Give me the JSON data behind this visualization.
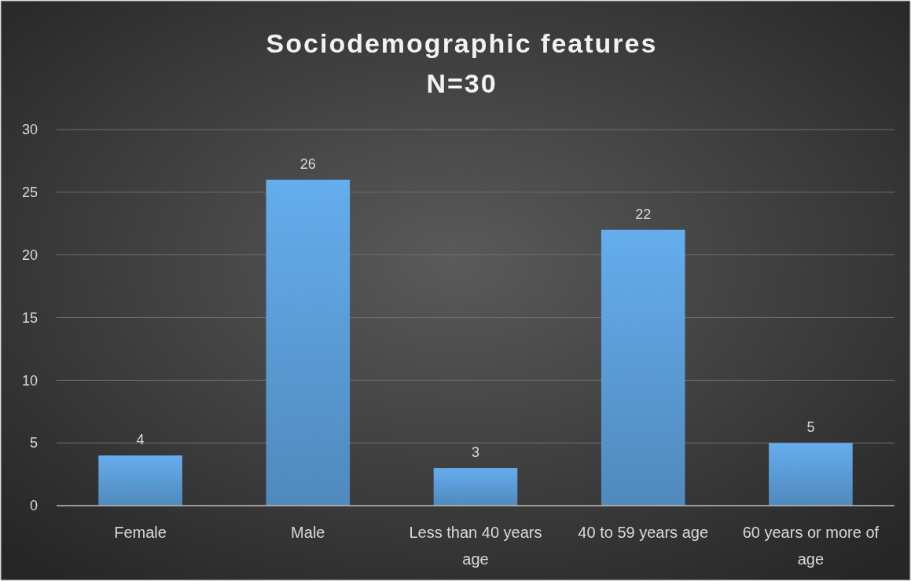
{
  "chart_data": {
    "type": "bar",
    "title": "Sociodemographic features",
    "subtitle": "N=30",
    "categories": [
      "Female",
      "Male",
      "Less than 40 years age",
      "40 to 59 years age",
      "60 years or more of age"
    ],
    "values": [
      4,
      26,
      3,
      22,
      5
    ],
    "color": "#5b9bd5",
    "ylim": [
      0,
      30
    ],
    "yticks": [
      0,
      5,
      10,
      15,
      20,
      25,
      30
    ],
    "grid": "y",
    "data_labels": true
  }
}
